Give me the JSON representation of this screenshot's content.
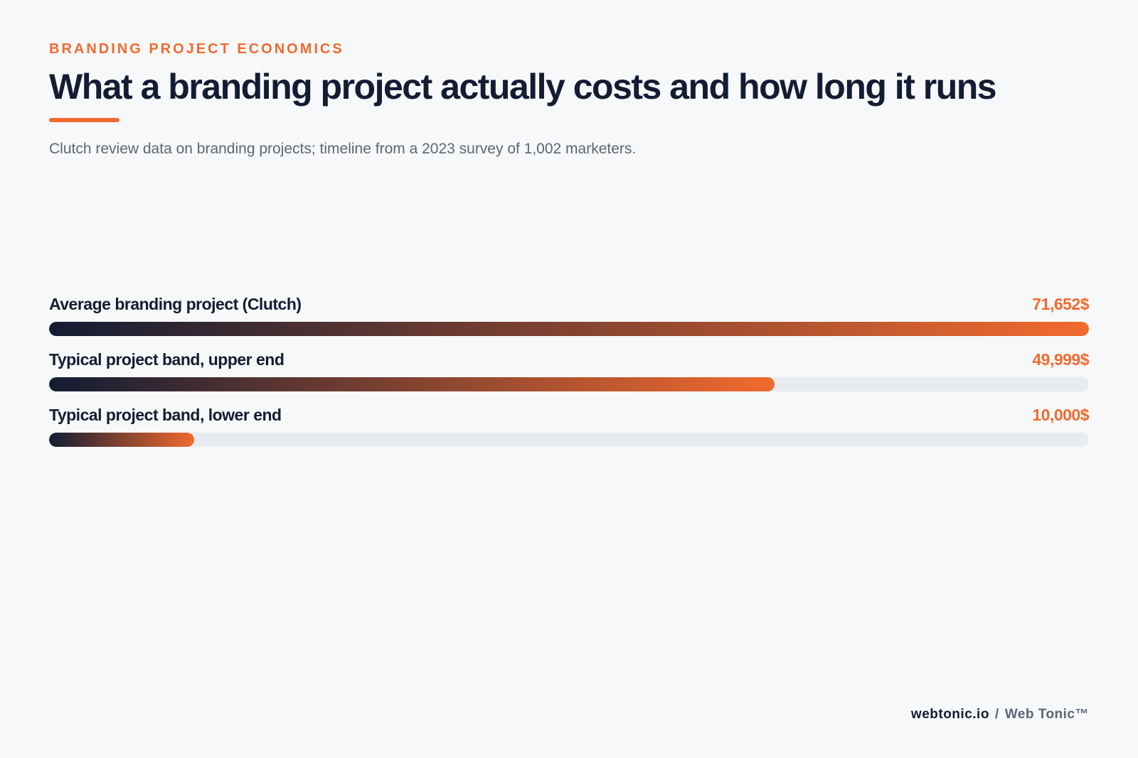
{
  "header": {
    "eyebrow": "BRANDING PROJECT ECONOMICS",
    "title": "What a branding project actually costs and how long it runs",
    "subtitle": "Clutch review data on branding projects; timeline from a 2023 survey of 1,002 marketers."
  },
  "colors": {
    "accent": "#f26a2e",
    "navy": "#131c33",
    "track": "#e8ebf0",
    "background": "#f7f8fa"
  },
  "chart_data": {
    "type": "bar",
    "orientation": "horizontal",
    "categories": [
      "Average branding project (Clutch)",
      "Typical project band, upper end",
      "Typical project band, lower end"
    ],
    "values": [
      71652,
      49999,
      10000
    ],
    "value_labels": [
      "71,652$",
      "49,999$",
      "10,000$"
    ],
    "xlim": [
      0,
      71652
    ],
    "grid": false,
    "legend": "none"
  },
  "footer": {
    "site": "webtonic.io",
    "separator": "/",
    "brand": "Web Tonic™"
  }
}
